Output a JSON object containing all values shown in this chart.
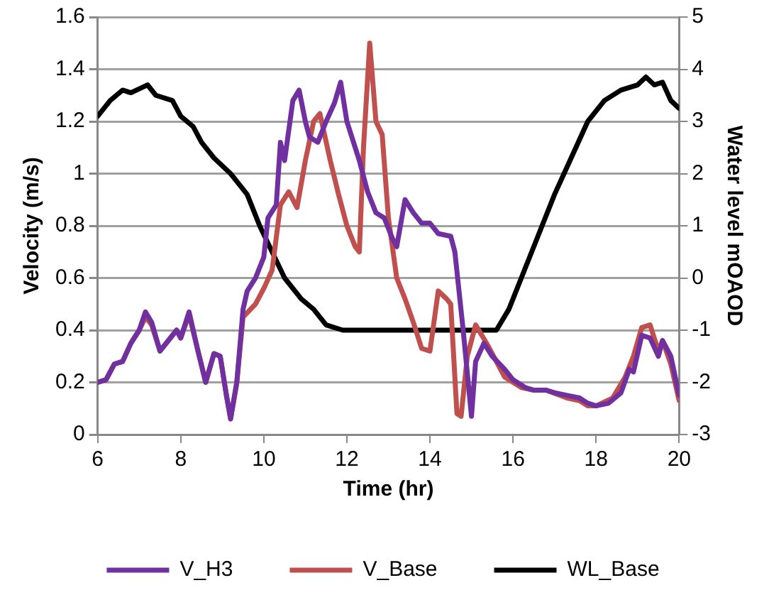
{
  "chart_data": {
    "type": "line",
    "xlabel": "Time (hr)",
    "ylabel": "Velocity (m/s)",
    "y2label": "Water level mOAOD",
    "xlim": [
      6,
      20
    ],
    "xticks": [
      6,
      8,
      10,
      12,
      14,
      16,
      18,
      20
    ],
    "ylim": [
      0,
      1.6
    ],
    "yticks": [
      0,
      0.2,
      0.4,
      0.6,
      0.8,
      {
        "value": 1,
        "label": "1"
      },
      1.2,
      1.4,
      1.6
    ],
    "y2lim": [
      -3,
      5
    ],
    "y2ticks": [
      -3,
      -2,
      -1,
      0,
      1,
      2,
      3,
      4,
      5
    ],
    "grid": "y",
    "legend": "bottom",
    "marker": "none",
    "series": [
      {
        "name": "V_H3",
        "color": "#7030a0",
        "x": [
          6,
          6.2,
          6.4,
          6.6,
          6.8,
          7,
          7.15,
          7.3,
          7.5,
          7.7,
          7.9,
          8,
          8.2,
          8.4,
          8.6,
          8.8,
          8.95,
          9.1,
          9.2,
          9.35,
          9.5,
          9.6,
          9.8,
          10,
          10.1,
          10.3,
          10.4,
          10.5,
          10.7,
          10.85,
          11,
          11.1,
          11.3,
          11.5,
          11.7,
          11.85,
          12,
          12.3,
          12.5,
          12.7,
          12.9,
          13.1,
          13.2,
          13.4,
          13.6,
          13.8,
          14,
          14.2,
          14.5,
          14.6,
          14.8,
          15,
          15.1,
          15.3,
          15.5,
          15.8,
          16,
          16.3,
          16.5,
          16.8,
          17,
          17.3,
          17.6,
          17.8,
          18,
          18.3,
          18.6,
          18.8,
          18.9,
          19.1,
          19.3,
          19.5,
          19.6,
          19.8,
          20
        ],
        "values": [
          0.2,
          0.21,
          0.27,
          0.28,
          0.35,
          0.4,
          0.47,
          0.43,
          0.32,
          0.36,
          0.4,
          0.37,
          0.47,
          0.33,
          0.2,
          0.31,
          0.3,
          0.15,
          0.06,
          0.2,
          0.48,
          0.55,
          0.6,
          0.68,
          0.83,
          0.88,
          1.12,
          1.05,
          1.28,
          1.32,
          1.2,
          1.14,
          1.12,
          1.2,
          1.27,
          1.35,
          1.2,
          1.05,
          0.93,
          0.85,
          0.83,
          0.75,
          0.72,
          0.9,
          0.85,
          0.81,
          0.81,
          0.77,
          0.76,
          0.7,
          0.4,
          0.07,
          0.28,
          0.35,
          0.3,
          0.25,
          0.21,
          0.18,
          0.17,
          0.17,
          0.16,
          0.15,
          0.14,
          0.12,
          0.11,
          0.12,
          0.16,
          0.25,
          0.24,
          0.38,
          0.37,
          0.3,
          0.36,
          0.3,
          0.15
        ]
      },
      {
        "name": "V_Base",
        "color": "#c0504d",
        "x": [
          6,
          6.2,
          6.4,
          6.6,
          6.8,
          7,
          7.15,
          7.3,
          7.5,
          7.7,
          7.9,
          8,
          8.2,
          8.4,
          8.6,
          8.8,
          8.95,
          9.1,
          9.2,
          9.35,
          9.5,
          9.8,
          10,
          10.2,
          10.4,
          10.6,
          10.8,
          11,
          11.2,
          11.35,
          11.6,
          11.8,
          12,
          12.2,
          12.3,
          12.4,
          12.55,
          12.7,
          12.85,
          13,
          13.2,
          13.4,
          13.6,
          13.8,
          14,
          14.2,
          14.4,
          14.5,
          14.65,
          14.75,
          14.9,
          15.1,
          15.4,
          15.8,
          16.2,
          16.5,
          16.8,
          17.3,
          17.6,
          17.8,
          18,
          18.4,
          18.7,
          18.9,
          19.1,
          19.3,
          19.5,
          19.6,
          19.8,
          20
        ],
        "values": [
          0.2,
          0.21,
          0.27,
          0.28,
          0.35,
          0.4,
          0.45,
          0.42,
          0.32,
          0.36,
          0.4,
          0.37,
          0.46,
          0.33,
          0.2,
          0.31,
          0.3,
          0.15,
          0.06,
          0.2,
          0.45,
          0.5,
          0.56,
          0.63,
          0.88,
          0.93,
          0.87,
          1.05,
          1.2,
          1.23,
          1.05,
          0.92,
          0.8,
          0.72,
          0.7,
          1.1,
          1.5,
          1.2,
          1.15,
          0.83,
          0.6,
          0.52,
          0.43,
          0.33,
          0.32,
          0.55,
          0.52,
          0.5,
          0.08,
          0.07,
          0.3,
          0.42,
          0.34,
          0.22,
          0.18,
          0.17,
          0.17,
          0.14,
          0.13,
          0.11,
          0.11,
          0.14,
          0.22,
          0.3,
          0.41,
          0.42,
          0.32,
          0.36,
          0.27,
          0.13
        ]
      },
      {
        "name": "WL_Base",
        "color": "#000000",
        "axis": "y2",
        "x": [
          6,
          6.3,
          6.6,
          6.8,
          7.2,
          7.4,
          7.8,
          8,
          8.3,
          8.5,
          8.8,
          9.2,
          9.6,
          9.9,
          10.2,
          10.5,
          10.9,
          11.2,
          11.5,
          11.9,
          15.6,
          15.9,
          16.2,
          16.6,
          17,
          17.4,
          17.8,
          18.2,
          18.6,
          19,
          19.2,
          19.4,
          19.6,
          19.8,
          20
        ],
        "values": [
          3.1,
          3.4,
          3.6,
          3.55,
          3.7,
          3.5,
          3.4,
          3.1,
          2.9,
          2.6,
          2.3,
          2,
          1.6,
          1,
          0.5,
          0,
          -0.4,
          -0.6,
          -0.9,
          -1,
          -1,
          -0.6,
          0,
          0.8,
          1.6,
          2.3,
          3,
          3.4,
          3.6,
          3.7,
          3.85,
          3.7,
          3.75,
          3.4,
          3.25
        ]
      }
    ]
  }
}
